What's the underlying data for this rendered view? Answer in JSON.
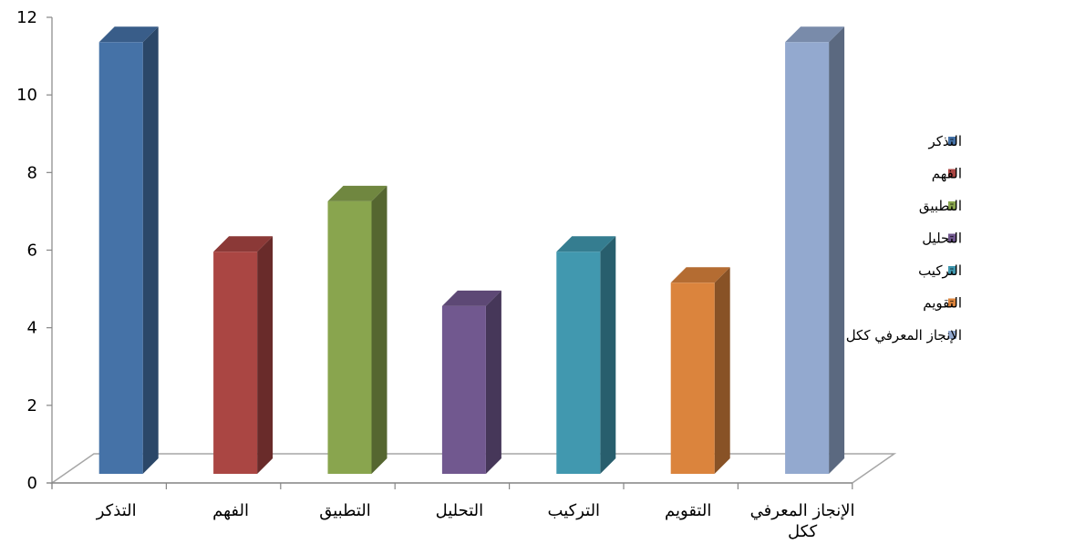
{
  "chart_data": {
    "type": "bar",
    "categories": [
      "التذكر",
      "الفهم",
      "التطبيق",
      "التحليل",
      "التركيب",
      "التقويم",
      "الإنجاز المعرفي ككل"
    ],
    "category_labels": [
      [
        "التذكر"
      ],
      [
        "الفهم"
      ],
      [
        "التطبيق"
      ],
      [
        "التحليل"
      ],
      [
        "التركيب"
      ],
      [
        "التقويم"
      ],
      [
        "الإنجاز المعرفي",
        "ككل"
      ]
    ],
    "values": [
      11.5,
      6.1,
      7.4,
      4.7,
      6.1,
      5.3,
      11.5
    ],
    "colors": [
      "#4572A7",
      "#AA4643",
      "#89A54E",
      "#71588F",
      "#4198AF",
      "#DB843D",
      "#93A9CF"
    ],
    "yticks": [
      "0",
      "2",
      "4",
      "6",
      "8",
      "10",
      "12"
    ],
    "ylim": [
      0,
      12
    ],
    "legend": [
      "التذكر",
      "الفهم",
      "التطبيق",
      "التحليل",
      "التركيب",
      "التقويم",
      "الإنجاز المعرفي ككل"
    ],
    "legend_position": "right",
    "three_d": true,
    "grid": false
  }
}
